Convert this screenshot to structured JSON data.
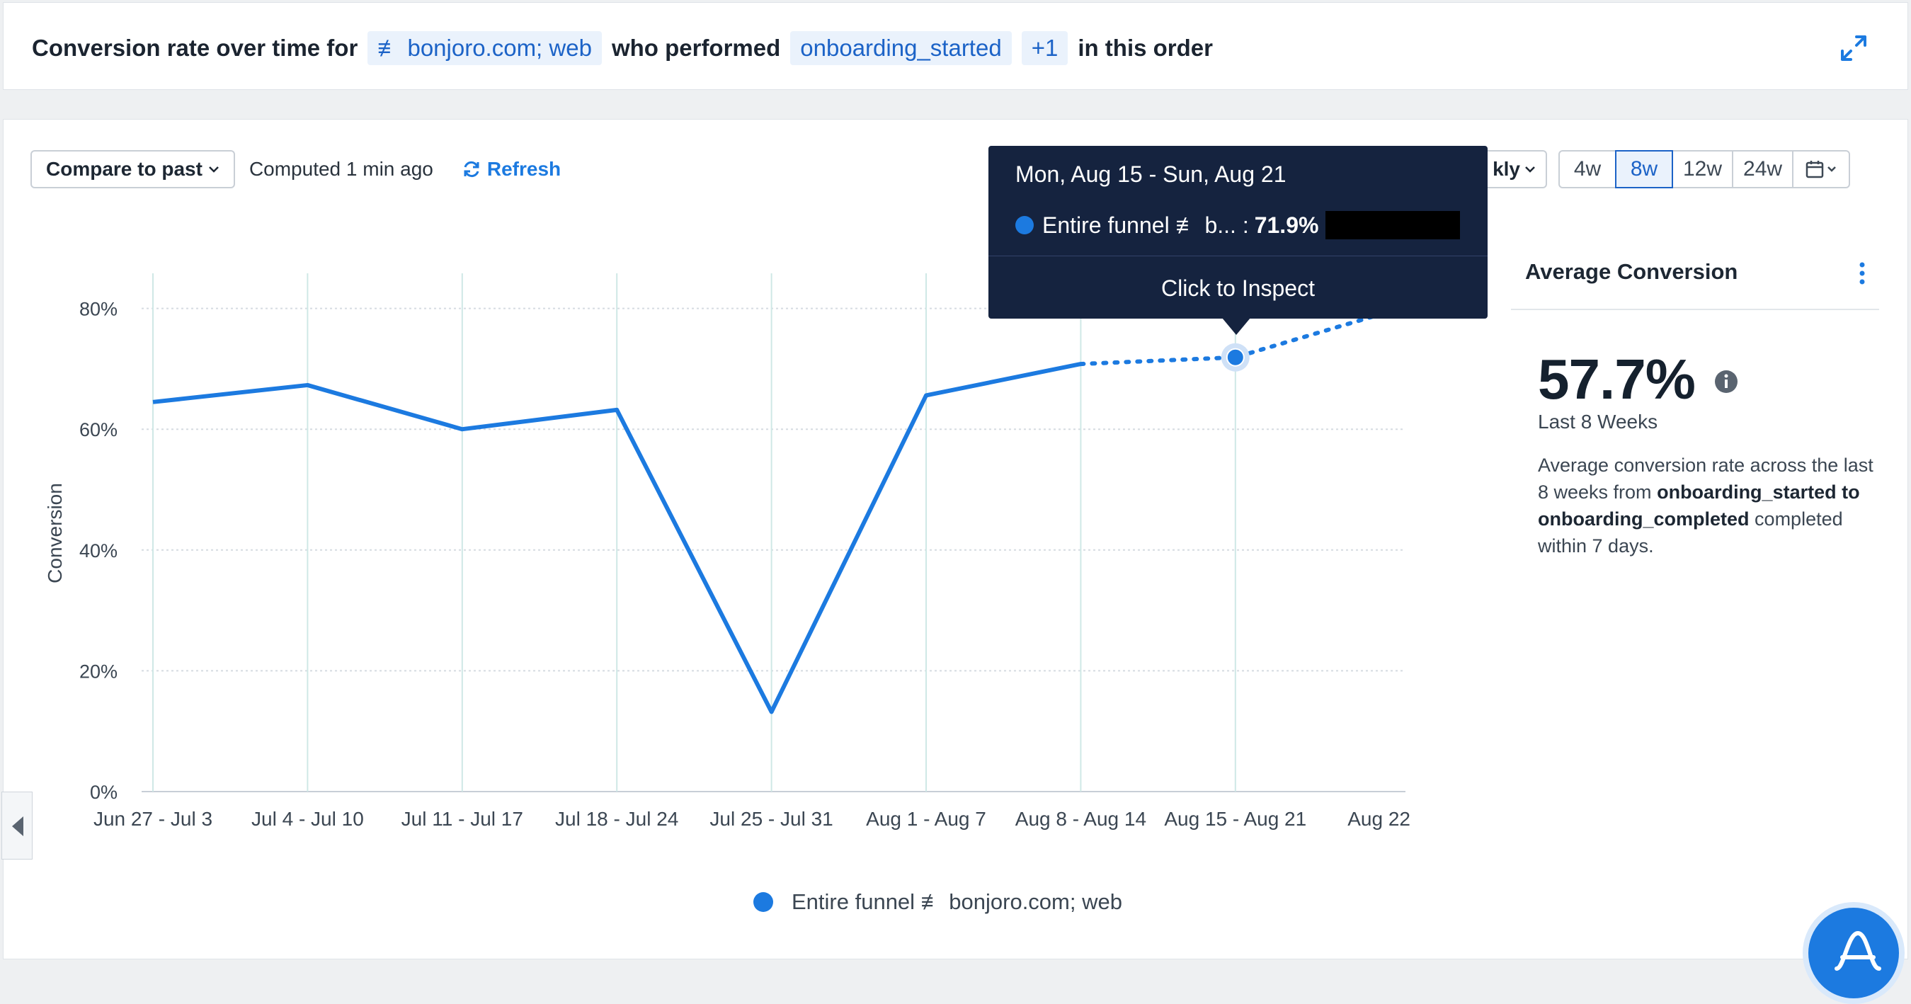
{
  "header": {
    "prefix": "Conversion rate over time for",
    "segment_chip": "≢ bonjoro.com; web",
    "mid": "who performed",
    "event_chip": "onboarding_started",
    "more_chip": "+1",
    "suffix": "in this order"
  },
  "toolbar": {
    "compare_label": "Compare to past",
    "computed_text": "Computed 1 min ago",
    "refresh_label": "Refresh",
    "interval_label": "kly",
    "ranges": [
      "4w",
      "8w",
      "12w",
      "24w"
    ],
    "active_range": "8w"
  },
  "tooltip": {
    "date_range": "Mon, Aug 15 - Sun, Aug 21",
    "series_label": "Entire funnel ≢ b... :",
    "value": "71.9%",
    "action": "Click to Inspect"
  },
  "average_panel": {
    "title": "Average Conversion",
    "value": "57.7%",
    "period": "Last 8 Weeks",
    "desc_prefix": "Average conversion rate across the last 8 weeks from",
    "desc_bold": "onboarding_started to onboarding_completed",
    "desc_suffix": "completed within 7 days."
  },
  "legend_label": "Entire funnel ≢ bonjoro.com; web",
  "colors": {
    "series": "#1c7ae0",
    "tooltip_bg": "#15233f",
    "chip_bg": "#eaf2fc",
    "chip_text": "#1c63c7"
  },
  "chart_data": {
    "type": "line",
    "ylabel": "Conversion",
    "y_ticks": [
      "0%",
      "20%",
      "40%",
      "60%",
      "80%"
    ],
    "ylim": [
      0,
      85
    ],
    "categories": [
      "Jun 27 - Jul 3",
      "Jul 4 - Jul 10",
      "Jul 11 - Jul 17",
      "Jul 18 - Jul 24",
      "Jul 25 - Jul 31",
      "Aug 1 - Aug 7",
      "Aug 8 - Aug 14",
      "Aug 15 - Aug 21",
      "Aug 22 ..."
    ],
    "series": [
      {
        "values": [
          64.5,
          67.3,
          60.0,
          63.2,
          13.2,
          65.6,
          70.8,
          71.9,
          79.5
        ],
        "incomplete_from_index": 6
      }
    ],
    "highlighted_index": 7,
    "grid": true
  }
}
